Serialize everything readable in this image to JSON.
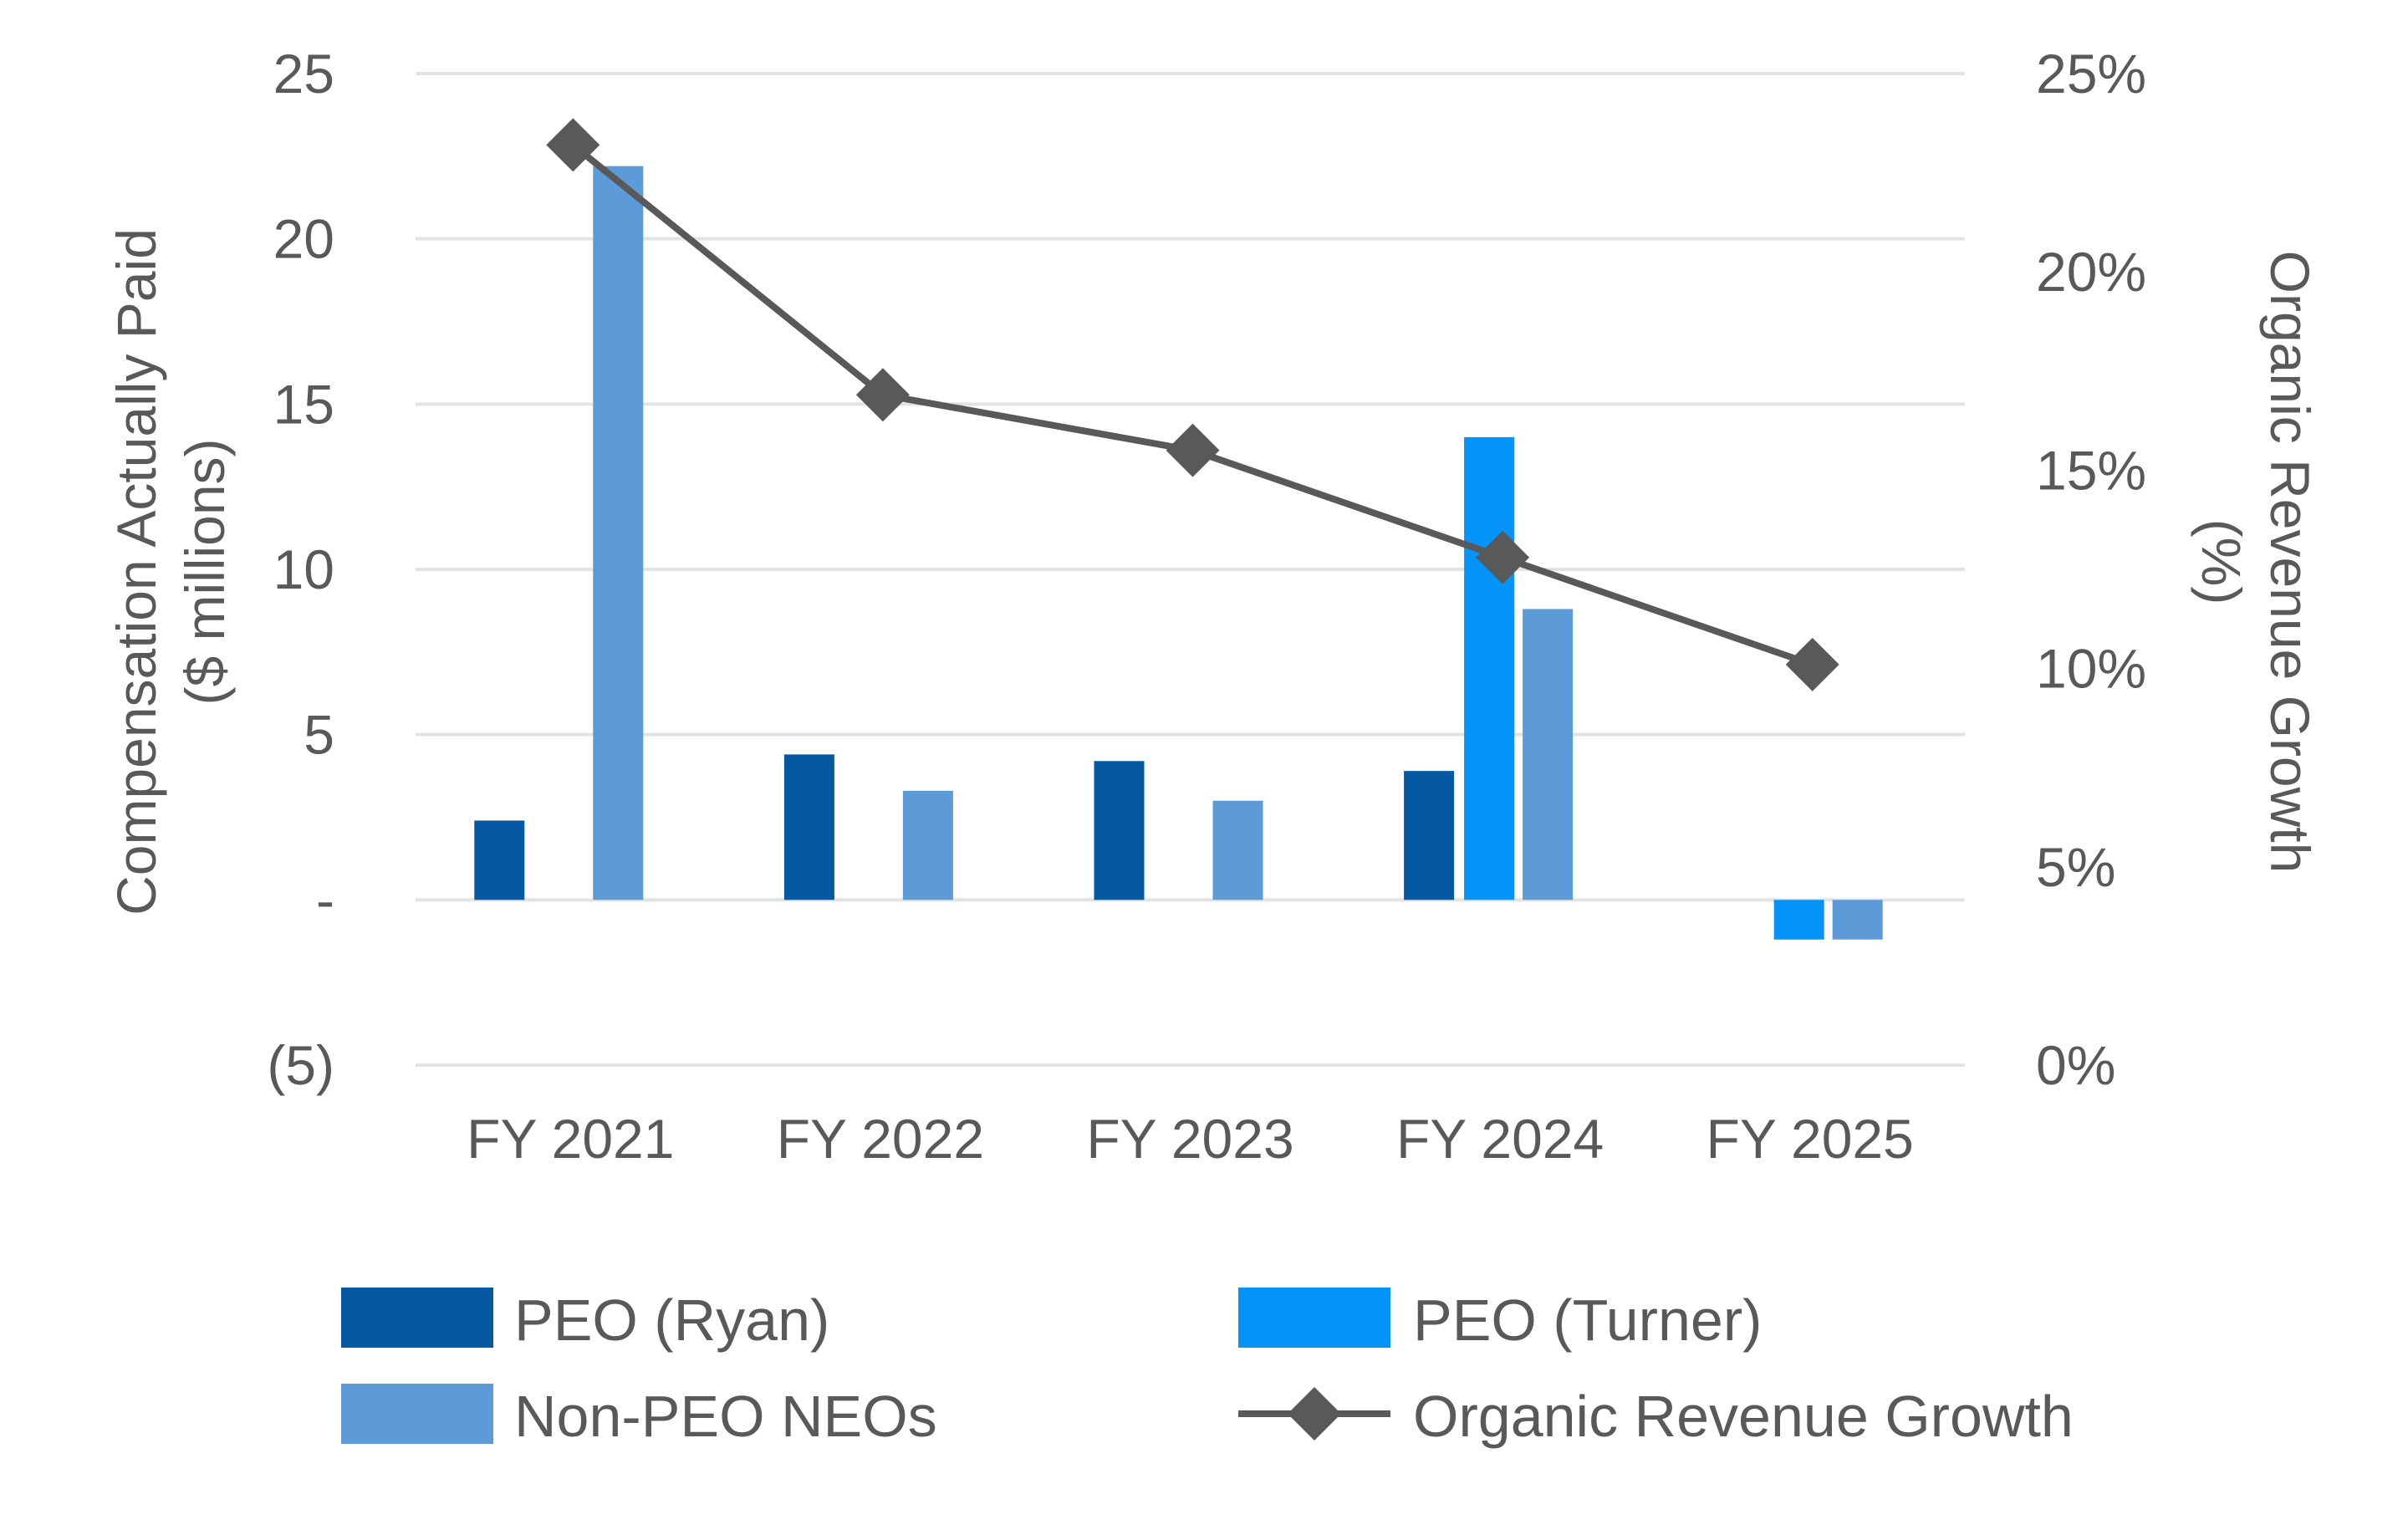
{
  "chart_data": {
    "type": "bar",
    "categories": [
      "FY 2021",
      "FY 2022",
      "FY 2023",
      "FY 2024",
      "FY 2025"
    ],
    "series": [
      {
        "name": "PEO (Ryan)",
        "type": "bar",
        "axis": "left",
        "color": "#0559a3",
        "values": [
          2.4,
          4.4,
          4.2,
          3.9,
          null
        ]
      },
      {
        "name": "PEO (Turner)",
        "type": "bar",
        "axis": "left",
        "color": "#0593f7",
        "values": [
          null,
          null,
          null,
          14.0,
          -1.2
        ]
      },
      {
        "name": "Non-PEO NEOs",
        "type": "bar",
        "axis": "left",
        "color": "#5c9bd8",
        "values": [
          22.2,
          3.3,
          3.0,
          8.8,
          -1.2
        ]
      },
      {
        "name": "Organic Revenue Growth",
        "type": "line",
        "axis": "right",
        "color": "#595959",
        "marker": "diamond",
        "values": [
          23.2,
          16.9,
          15.5,
          12.8,
          10.1
        ]
      }
    ],
    "y_left": {
      "label_line1": "Compensation Actually Paid",
      "label_line2": "($ millions)",
      "range": [
        -5,
        25
      ],
      "ticks": [
        25,
        20,
        15,
        10,
        5,
        0,
        -5
      ],
      "tick_labels": [
        "25",
        "20",
        "15",
        "10",
        "5",
        "-",
        "(5)"
      ]
    },
    "y_right": {
      "label_line1": "Organic Revenue Growth",
      "label_line2": "(%)",
      "range": [
        0,
        25
      ],
      "ticks": [
        25,
        20,
        15,
        10,
        5,
        0
      ],
      "tick_labels": [
        "25%",
        "20%",
        "15%",
        "10%",
        "5%",
        "0%"
      ]
    },
    "grid": true,
    "legend_position": "bottom",
    "legend": [
      {
        "label": "PEO (Ryan)",
        "kind": "box",
        "color": "#0559a3"
      },
      {
        "label": "PEO (Turner)",
        "kind": "box",
        "color": "#0593f7"
      },
      {
        "label": "Non-PEO NEOs",
        "kind": "box",
        "color": "#5c9bd8"
      },
      {
        "label": "Organic Revenue Growth",
        "kind": "line-diamond",
        "color": "#595959"
      }
    ]
  }
}
